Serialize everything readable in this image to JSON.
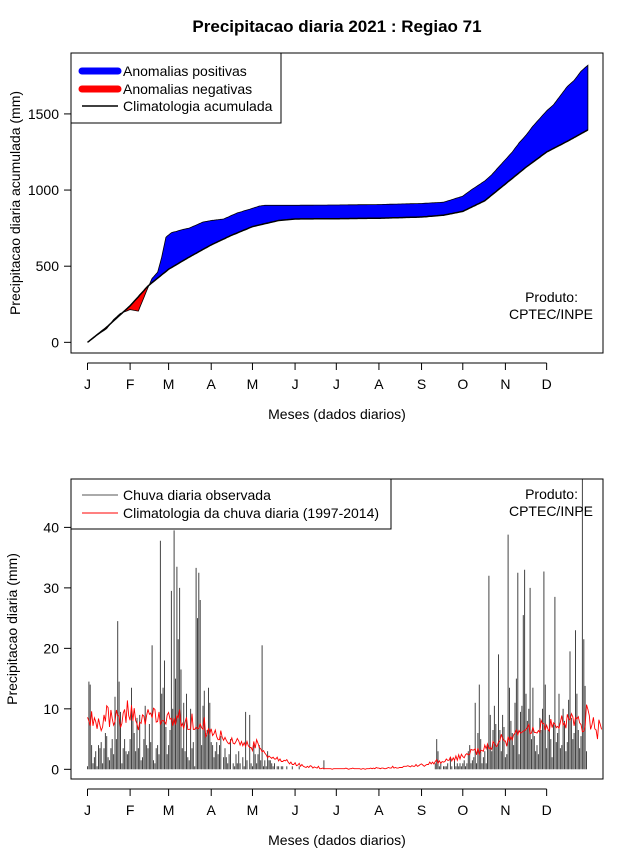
{
  "title": "Precipitacao diaria 2021 : Regiao 71",
  "chart_data": [
    {
      "type": "area",
      "ylabel": "Precipitacao diaria acumulada (mm)",
      "xlabel": "Meses (dados diarios)",
      "months": [
        "J",
        "F",
        "M",
        "A",
        "M",
        "J",
        "J",
        "A",
        "S",
        "O",
        "N",
        "D"
      ],
      "month_start_days": [
        1,
        32,
        60,
        91,
        121,
        152,
        182,
        213,
        244,
        274,
        305,
        335
      ],
      "yticks": [
        0,
        500,
        1000,
        1500
      ],
      "ylim": [
        -70,
        1900
      ],
      "xlim": [
        -11,
        376
      ],
      "legend": [
        {
          "label": "Anomalias positivas",
          "color": "#0000ff",
          "kind": "thick"
        },
        {
          "label": "Anomalias negativas",
          "color": "#ff0000",
          "kind": "thick"
        },
        {
          "label": "Climatologia acumulada",
          "color": "#000000",
          "kind": "line"
        }
      ],
      "annotation": [
        "Produto:",
        "CPTEC/INPE"
      ],
      "climatology": {
        "day": [
          1,
          15,
          32,
          45,
          60,
          75,
          91,
          105,
          121,
          140,
          152,
          182,
          213,
          244,
          260,
          274,
          290,
          305,
          320,
          335,
          350,
          365
        ],
        "mm": [
          0,
          100,
          240,
          370,
          480,
          560,
          640,
          700,
          760,
          800,
          810,
          812,
          815,
          823,
          835,
          860,
          930,
          1040,
          1150,
          1250,
          1320,
          1395
        ]
      },
      "observed": {
        "day": [
          1,
          10,
          15,
          20,
          25,
          32,
          38,
          45,
          48,
          52,
          55,
          58,
          62,
          66,
          70,
          75,
          80,
          85,
          91,
          100,
          110,
          121,
          126,
          130,
          140,
          152,
          182,
          213,
          244,
          260,
          274,
          280,
          285,
          290,
          295,
          300,
          305,
          310,
          315,
          320,
          325,
          330,
          335,
          340,
          345,
          350,
          355,
          360,
          365
        ],
        "mm": [
          0,
          60,
          90,
          150,
          190,
          215,
          205,
          360,
          420,
          460,
          560,
          690,
          720,
          730,
          740,
          750,
          770,
          790,
          800,
          810,
          850,
          880,
          895,
          900,
          900,
          900,
          902,
          905,
          912,
          920,
          960,
          1000,
          1030,
          1060,
          1100,
          1150,
          1200,
          1250,
          1310,
          1360,
          1420,
          1470,
          1520,
          1560,
          1620,
          1680,
          1720,
          1780,
          1820
        ]
      }
    },
    {
      "type": "line",
      "ylabel": "Precipitacao diaria (mm)",
      "xlabel": "Meses (dados diarios)",
      "months": [
        "J",
        "F",
        "M",
        "A",
        "M",
        "J",
        "J",
        "A",
        "S",
        "O",
        "N",
        "D"
      ],
      "month_start_days": [
        1,
        32,
        60,
        91,
        121,
        152,
        182,
        213,
        244,
        274,
        305,
        335
      ],
      "yticks": [
        0,
        10,
        20,
        30,
        40
      ],
      "ylim": [
        -1.6,
        48
      ],
      "xlim": [
        -11,
        376
      ],
      "legend": [
        {
          "label": "Chuva diaria observada",
          "color": "#555555",
          "kind": "line"
        },
        {
          "label": "Climatologia da chuva diaria (1997-2014)",
          "color": "#ff0000",
          "kind": "line"
        }
      ],
      "annotation": [
        "Produto:",
        "CPTEC/INPE"
      ],
      "observed_daily_mm": [
        0.5,
        14.5,
        14.0,
        4.0,
        1.0,
        2.0,
        3.0,
        0.5,
        4.0,
        3.5,
        4.5,
        1.0,
        3.5,
        6.0,
        5.5,
        2.0,
        1.5,
        3.5,
        5.0,
        2.5,
        12.0,
        5.0,
        24.5,
        14.5,
        9.5,
        1.0,
        3.5,
        5.0,
        3.0,
        2.5,
        3.0,
        5.0,
        13.5,
        8.0,
        6.0,
        3.0,
        8.5,
        3.5,
        9.0,
        1.5,
        2.0,
        5.0,
        10.5,
        4.0,
        3.5,
        7.5,
        4.5,
        20.5,
        1.5,
        1.0,
        3.5,
        4.0,
        2.5,
        37.8,
        12.5,
        13.5,
        18.0,
        7.0,
        2.5,
        4.0,
        6.5,
        29.5,
        10.0,
        39.5,
        15.0,
        33.5,
        21.5,
        30.0,
        16.5,
        3.5,
        11.0,
        3.0,
        12.5,
        2.0,
        1.5,
        10.0,
        3.5,
        4.5,
        0.5,
        33.3,
        25.0,
        32.5,
        28.0,
        4.0,
        10.5,
        13.0,
        6.0,
        6.5,
        13.5,
        11.0,
        4.5,
        4.0,
        2.0,
        3.0,
        4.5,
        2.5,
        4.0,
        5.5,
        0.0,
        2.0,
        3.5,
        2.0,
        1.0,
        2.5,
        5.0,
        0.0,
        1.0,
        0.5,
        2.5,
        1.0,
        3.0,
        1.0,
        0.0,
        2.0,
        0.5,
        9.5,
        1.5,
        0.0,
        9.0,
        1.0,
        0.5,
        4.0,
        2.5,
        1.0,
        2.5,
        4.0,
        1.5,
        20.5,
        0.5,
        1.5,
        0.5,
        3.0,
        1.5,
        1.5,
        1.0,
        0.5,
        1.0,
        0.0,
        0.5,
        0.5,
        0.0,
        0.5,
        0.5,
        0.0,
        0.0,
        0.5,
        0.0,
        0.0,
        0.0,
        0.5,
        0.0,
        0.0,
        0.0,
        0.0,
        0.5,
        0.0,
        0.0,
        0.0,
        0.0,
        0.0,
        0.0,
        0.0,
        0.0,
        0.0,
        0.0,
        0.0,
        0.0,
        0.0,
        0.0,
        0.0,
        0.0,
        0.0,
        1.5,
        0.0,
        0.0,
        0.0,
        0.0,
        0.0,
        0.0,
        0.0,
        0.0,
        0.0,
        0.0,
        0.0,
        0.0,
        0.0,
        0.0,
        0.0,
        0.0,
        0.0,
        0.0,
        0.0,
        0.0,
        0.0,
        0.0,
        0.0,
        0.0,
        0.0,
        0.0,
        0.0,
        0.0,
        0.0,
        0.0,
        0.0,
        0.0,
        0.0,
        0.0,
        0.0,
        0.0,
        0.0,
        0.0,
        0.0,
        0.0,
        0.0,
        0.0,
        0.0,
        0.0,
        0.0,
        0.0,
        0.0,
        0.0,
        0.0,
        0.0,
        0.0,
        0.0,
        0.0,
        0.0,
        0.0,
        0.0,
        0.0,
        0.0,
        0.0,
        0.0,
        0.0,
        0.0,
        0.0,
        0.0,
        0.0,
        0.0,
        0.0,
        0.0,
        0.0,
        0.0,
        0.0,
        0.0,
        0.0,
        0.0,
        0.0,
        0.0,
        0.0,
        0.0,
        0.0,
        0.0,
        1.0,
        5.0,
        3.0,
        0.5,
        1.0,
        0.0,
        0.5,
        0.5,
        0.5,
        1.0,
        0.0,
        2.0,
        0.5,
        0.0,
        1.5,
        0.5,
        1.0,
        0.5,
        1.0,
        0.5,
        1.0,
        1.5,
        0.5,
        1.0,
        3.0,
        4.0,
        1.0,
        1.5,
        2.0,
        11.0,
        1.0,
        6.0,
        14.0,
        5.0,
        1.0,
        2.0,
        3.0,
        1.0,
        4.0,
        32.0,
        9.0,
        3.0,
        6.5,
        10.5,
        7.5,
        4.0,
        19.0,
        6.5,
        3.0,
        9.0,
        7.0,
        2.0,
        2.5,
        38.8,
        13.5,
        8.0,
        6.0,
        4.0,
        11.0,
        15.0,
        32.5,
        2.5,
        9.5,
        10.5,
        25.5,
        33.0,
        12.5,
        8.0,
        10.0,
        30.0,
        5.0,
        13.5,
        5.5,
        3.0,
        4.0,
        2.5,
        8.5,
        6.5,
        10.0,
        32.7,
        14.0,
        3.5,
        6.5,
        9.0,
        5.0,
        2.0,
        7.5,
        28.5,
        4.5,
        6.0,
        12.5,
        3.5,
        4.0,
        10.0,
        8.0,
        3.0,
        4.5,
        11.5,
        19.5,
        8.5,
        5.0,
        6.0,
        23.0,
        12.5,
        6.5,
        3.5,
        5.5,
        48.0,
        21.5,
        13.8,
        3.0
      ],
      "climatology_daily_mm": [
        8.6,
        8.0,
        7.2,
        9.6,
        7.2,
        8.5,
        7.9,
        6.7,
        8.4,
        7.3,
        6.4,
        7.0,
        9.0,
        7.9,
        10.5,
        10.2,
        7.0,
        9.8,
        8.4,
        7.3,
        7.9,
        9.8,
        8.9,
        8.8,
        6.9,
        7.6,
        9.3,
        9.9,
        7.7,
        11.4,
        8.9,
        8.1,
        10.6,
        8.0,
        10.1,
        8.1,
        7.5,
        6.5,
        7.8,
        7.6,
        9.0,
        8.8,
        7.4,
        8.9,
        9.9,
        9.1,
        9.3,
        8.5,
        10.1,
        9.9,
        7.8,
        7.9,
        9.5,
        7.4,
        8.0,
        8.1,
        7.9,
        7.5,
        9.0,
        9.4,
        8.3,
        8.4,
        7.2,
        8.5,
        7.4,
        8.9,
        8.5,
        9.9,
        7.0,
        7.6,
        6.8,
        7.8,
        8.6,
        6.6,
        6.6,
        6.7,
        9.2,
        6.6,
        6.6,
        7.0,
        6.7,
        6.8,
        7.5,
        6.9,
        6.6,
        8.6,
        5.4,
        5.8,
        6.8,
        5.9,
        6.7,
        5.6,
        5.9,
        6.5,
        5.4,
        4.9,
        4.9,
        6.4,
        5.3,
        4.8,
        5.3,
        4.8,
        4.4,
        4.2,
        4.6,
        5.2,
        4.3,
        4.2,
        4.6,
        5.1,
        4.7,
        4.0,
        4.6,
        3.9,
        4.4,
        3.8,
        4.6,
        3.9,
        3.6,
        3.6,
        3.1,
        4.6,
        3.5,
        4.9,
        4.3,
        3.6,
        3.4,
        2.9,
        3.1,
        2.7,
        2.4,
        1.9,
        2.2,
        2.0,
        1.8,
        2.0,
        1.7,
        1.7,
        2.0,
        1.4,
        1.7,
        1.3,
        1.3,
        1.5,
        1.4,
        1.6,
        1.2,
        0.9,
        1.2,
        0.8,
        0.8,
        1.1,
        0.6,
        0.7,
        1.0,
        0.5,
        0.8,
        0.5,
        0.4,
        0.3,
        0.5,
        0.3,
        0.6,
        0.5,
        0.2,
        0.4,
        0.3,
        0.2,
        0.5,
        0.1,
        0.1,
        0.2,
        0.1,
        0.1,
        0.1,
        0.1,
        0.1,
        0.1,
        0.0,
        0.1,
        0.1,
        0.1,
        0.1,
        0.1,
        0.1,
        0.1,
        0.1,
        0.1,
        0.2,
        0.1,
        0.0,
        0.1,
        0.1,
        0.2,
        0.1,
        0.1,
        0.1,
        0.1,
        0.1,
        0.0,
        0.1,
        0.1,
        0.0,
        0.1,
        0.1,
        0.1,
        0.2,
        0.1,
        0.2,
        0.1,
        0.3,
        0.2,
        0.2,
        0.1,
        0.2,
        0.2,
        0.1,
        0.1,
        0.2,
        0.3,
        0.2,
        0.2,
        0.5,
        0.2,
        0.3,
        0.2,
        0.2,
        0.3,
        0.3,
        0.3,
        0.5,
        0.5,
        0.5,
        0.6,
        0.5,
        0.4,
        0.6,
        0.5,
        0.5,
        0.8,
        0.5,
        0.6,
        0.8,
        0.9,
        0.7,
        0.5,
        0.7,
        0.8,
        0.8,
        1.2,
        0.9,
        1.2,
        0.9,
        1.3,
        1.6,
        1.0,
        1.4,
        1.0,
        1.3,
        1.2,
        1.3,
        1.7,
        1.5,
        1.5,
        2.0,
        1.4,
        1.9,
        1.5,
        2.2,
        1.5,
        2.4,
        1.7,
        2.5,
        2.1,
        1.9,
        2.4,
        2.6,
        2.4,
        2.5,
        3.3,
        3.2,
        3.2,
        3.4,
        2.4,
        3.5,
        2.5,
        3.2,
        3.1,
        3.0,
        4.0,
        3.4,
        4.2,
        3.4,
        3.6,
        3.3,
        4.6,
        4.3,
        3.8,
        3.8,
        4.5,
        4.7,
        5.8,
        5.1,
        4.7,
        4.7,
        3.8,
        5.4,
        4.7,
        5.4,
        4.9,
        5.7,
        6.0,
        6.5,
        5.7,
        6.4,
        6.0,
        6.1,
        6.3,
        6.4,
        6.6,
        6.9,
        7.4,
        5.9,
        6.0,
        7.0,
        6.1,
        6.1,
        6.0,
        6.4,
        6.1,
        8.1,
        7.6,
        7.6,
        6.5,
        7.3,
        6.6,
        6.3,
        8.3,
        6.9,
        7.7,
        7.5,
        6.9,
        7.1,
        6.8,
        7.8,
        8.9,
        7.3,
        7.7,
        6.8,
        9.1,
        8.4,
        8.1,
        9.2,
        8.7,
        7.2,
        8.6,
        8.3,
        8.7,
        7.7,
        7.4,
        6.2,
        6.3,
        7.1,
        10.7,
        9.9,
        8.9,
        6.6,
        7.4,
        8.6,
        6.7,
        6.5,
        5.0,
        8.2,
        7.4,
        6.6
      ]
    }
  ]
}
